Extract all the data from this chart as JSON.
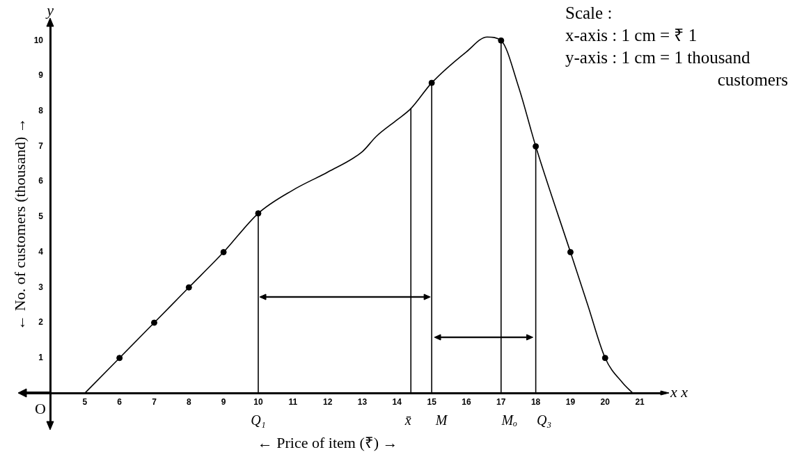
{
  "chart_data": {
    "type": "line",
    "xlabel": "← Price of item (₹) →",
    "ylabel": "← No. of customers (thousand) →",
    "xlim": [
      4,
      21.6
    ],
    "ylim": [
      -0.8,
      10.4
    ],
    "xticks": [
      5,
      6,
      7,
      8,
      9,
      10,
      11,
      12,
      13,
      14,
      15,
      16,
      17,
      18,
      19,
      20,
      21
    ],
    "yticks": [
      1,
      2,
      3,
      4,
      5,
      6,
      7,
      8,
      9,
      10
    ],
    "grid": false,
    "legend": false,
    "marker": "none",
    "series": [
      {
        "color": "#000000",
        "x": [
          5,
          6,
          7,
          8,
          9,
          10,
          11,
          12,
          13,
          13.4,
          14,
          14.4,
          15,
          16,
          16.6,
          17,
          17.5,
          18,
          19,
          19.5,
          20,
          20.5,
          20.8
        ],
        "values": [
          0,
          1,
          2,
          3,
          4,
          5.1,
          5.76,
          6.27,
          6.85,
          7.28,
          7.75,
          8.07,
          8.8,
          9.68,
          10.1,
          10,
          8.7,
          7,
          4,
          2.5,
          1,
          0.3,
          0
        ]
      },
      {
        "type": "scatter",
        "marker": "circle",
        "color": "#000000",
        "x": [
          6,
          7,
          8,
          9,
          10,
          15,
          17,
          18,
          19,
          20
        ],
        "values": [
          1,
          2,
          3,
          4,
          5.1,
          8.8,
          10,
          7,
          4,
          1
        ]
      },
      {
        "color": "#000000",
        "x": [
          10,
          10
        ],
        "values": [
          0,
          5.1
        ]
      },
      {
        "color": "#000000",
        "x": [
          14.4,
          14.4
        ],
        "values": [
          0,
          8.07
        ]
      },
      {
        "color": "#000000",
        "x": [
          15,
          15
        ],
        "values": [
          0,
          8.8
        ]
      },
      {
        "color": "#000000",
        "x": [
          17,
          17
        ],
        "values": [
          0,
          10
        ]
      },
      {
        "color": "#000000",
        "x": [
          18,
          18
        ],
        "values": [
          0,
          7
        ]
      }
    ],
    "annotations": [
      "Q₁",
      "x̄",
      "M",
      "Mₒ",
      "Q₃",
      "y",
      "O",
      "x x",
      "Scale :",
      "x-axis : 1 cm = ₹ 1",
      "y-axis : 1 cm = 1 thousand",
      "customers"
    ]
  }
}
